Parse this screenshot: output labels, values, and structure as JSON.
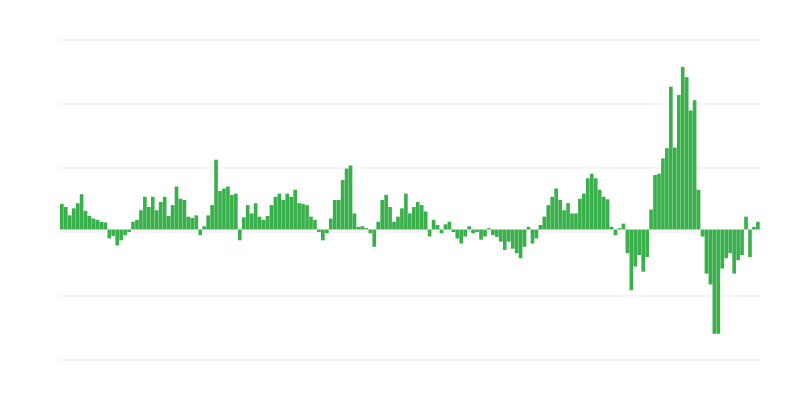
{
  "chart_data": {
    "type": "bar",
    "title": "",
    "xlabel": "",
    "ylabel": "",
    "ylim": [
      -2.04,
      2.96
    ],
    "grid": true,
    "legend": "none",
    "colors": {
      "positive": "#39b04b",
      "negative": "#39b04b",
      "grid": "#ececec",
      "zero_line": "#c4c4c4"
    },
    "values": [
      0.4,
      0.35,
      0.22,
      0.33,
      0.41,
      0.55,
      0.29,
      0.21,
      0.17,
      0.15,
      0.12,
      0.11,
      -0.14,
      -0.1,
      -0.25,
      -0.17,
      -0.09,
      -0.04,
      0.12,
      0.15,
      0.3,
      0.51,
      0.35,
      0.51,
      0.3,
      0.43,
      0.51,
      0.21,
      0.38,
      0.67,
      0.48,
      0.46,
      0.2,
      0.18,
      0.22,
      -0.09,
      0.05,
      0.22,
      0.38,
      1.09,
      0.6,
      0.64,
      0.67,
      0.54,
      0.56,
      -0.17,
      0.19,
      0.38,
      0.25,
      0.41,
      0.2,
      0.15,
      0.21,
      0.38,
      0.51,
      0.56,
      0.46,
      0.56,
      0.51,
      0.62,
      0.41,
      0.4,
      0.38,
      0.2,
      0.15,
      -0.04,
      -0.17,
      -0.06,
      0.17,
      0.46,
      0.46,
      0.77,
      0.95,
      1.0,
      0.25,
      0.04,
      0.05,
      0.02,
      -0.06,
      -0.27,
      0.12,
      0.46,
      0.54,
      0.35,
      0.12,
      0.2,
      0.33,
      0.56,
      0.25,
      0.35,
      0.43,
      0.38,
      0.28,
      -0.11,
      0.15,
      0.07,
      -0.06,
      0.08,
      0.12,
      -0.04,
      -0.14,
      -0.22,
      -0.11,
      0.05,
      -0.06,
      -0.04,
      -0.16,
      -0.11,
      0.02,
      -0.09,
      -0.12,
      -0.19,
      -0.32,
      -0.19,
      -0.3,
      -0.37,
      -0.45,
      -0.27,
      0.04,
      -0.22,
      -0.14,
      0.07,
      0.2,
      0.38,
      0.51,
      0.64,
      0.46,
      0.3,
      0.41,
      0.25,
      0.25,
      0.48,
      0.56,
      0.8,
      0.87,
      0.8,
      0.62,
      0.51,
      0.47,
      0.04,
      -0.09,
      0.02,
      0.09,
      -0.37,
      -0.95,
      -0.58,
      -0.4,
      -0.66,
      -0.43,
      0.31,
      0.85,
      0.87,
      1.11,
      1.27,
      2.23,
      1.28,
      2.1,
      2.54,
      2.38,
      1.86,
      2.02,
      0.62,
      -0.11,
      -0.69,
      -0.86,
      -1.63,
      -1.63,
      -0.61,
      -0.45,
      -0.37,
      -0.69,
      -0.48,
      -0.4,
      0.2,
      -0.43,
      0.04,
      0.12
    ]
  }
}
